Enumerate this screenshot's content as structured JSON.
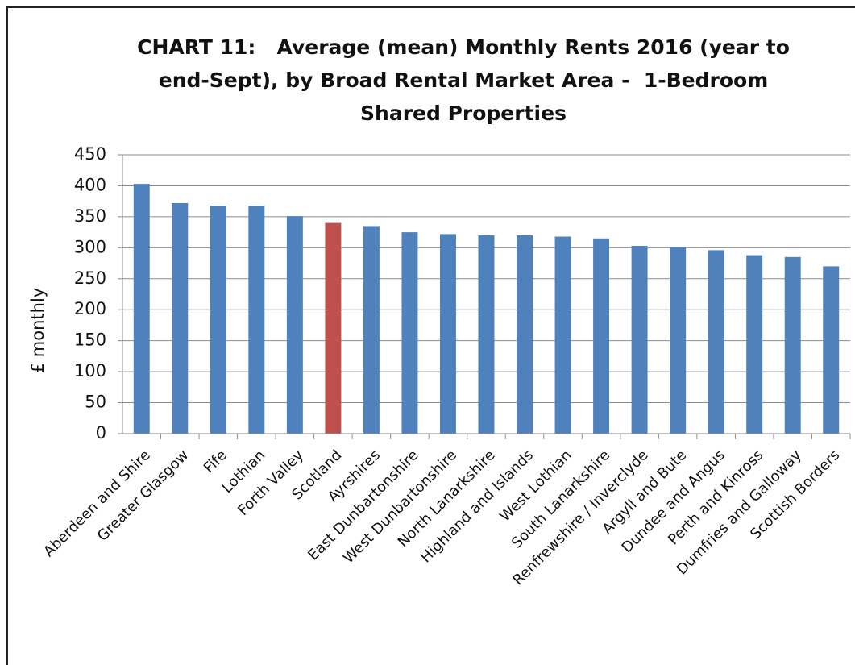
{
  "chart_data": {
    "type": "bar",
    "title": "CHART 11:   Average (mean) Monthly Rents 2016 (year to end-Sept), by Broad Rental Market Area -  1-Bedroom Shared Properties",
    "y_label": "£ monthly",
    "categories": [
      "Aberdeen and Shire",
      "Greater Glasgow",
      "Fife",
      "Lothian",
      "Forth Valley",
      "Scotland",
      "Ayrshires",
      "East Dunbartonshire",
      "West Dunbartonshire",
      "North Lanarkshire",
      "Highland and Islands",
      "West Lothian",
      "South Lanarkshire",
      "Renfrewshire / Inverclyde",
      "Argyll and Bute",
      "Dundee and Angus",
      "Perth and Kinross",
      "Dumfries and Galloway",
      "Scottish Borders"
    ],
    "values": [
      403,
      372,
      368,
      368,
      351,
      340,
      335,
      325,
      322,
      320,
      320,
      318,
      315,
      303,
      301,
      296,
      288,
      285,
      270
    ],
    "colors": [
      "#4f81bd",
      "#4f81bd",
      "#4f81bd",
      "#4f81bd",
      "#4f81bd",
      "#c0504d",
      "#4f81bd",
      "#4f81bd",
      "#4f81bd",
      "#4f81bd",
      "#4f81bd",
      "#4f81bd",
      "#4f81bd",
      "#4f81bd",
      "#4f81bd",
      "#4f81bd",
      "#4f81bd",
      "#4f81bd",
      "#4f81bd"
    ],
    "ylim": [
      0,
      450
    ],
    "yticks": [
      0,
      50,
      100,
      150,
      200,
      250,
      300,
      350,
      400,
      450
    ],
    "grid": true
  }
}
